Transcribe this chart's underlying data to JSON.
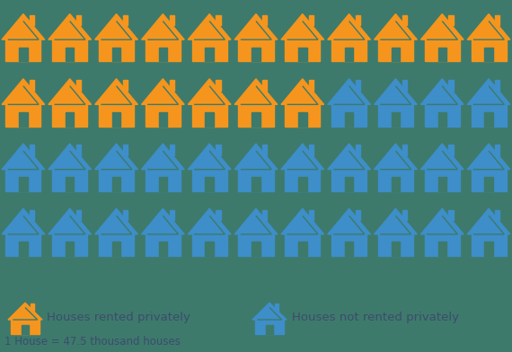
{
  "total_houses": 44,
  "orange_count": 18,
  "blue_count": 26,
  "cols": 11,
  "rows": 4,
  "orange_color": "#F5951D",
  "blue_color": "#3D8EC9",
  "bg_color": "#3D7A6B",
  "text_color": "#3D4B6E",
  "legend_label_orange": "Houses rented privately",
  "legend_label_blue": "Houses not rented privately",
  "footnote": "1 House = 47.5 thousand houses"
}
